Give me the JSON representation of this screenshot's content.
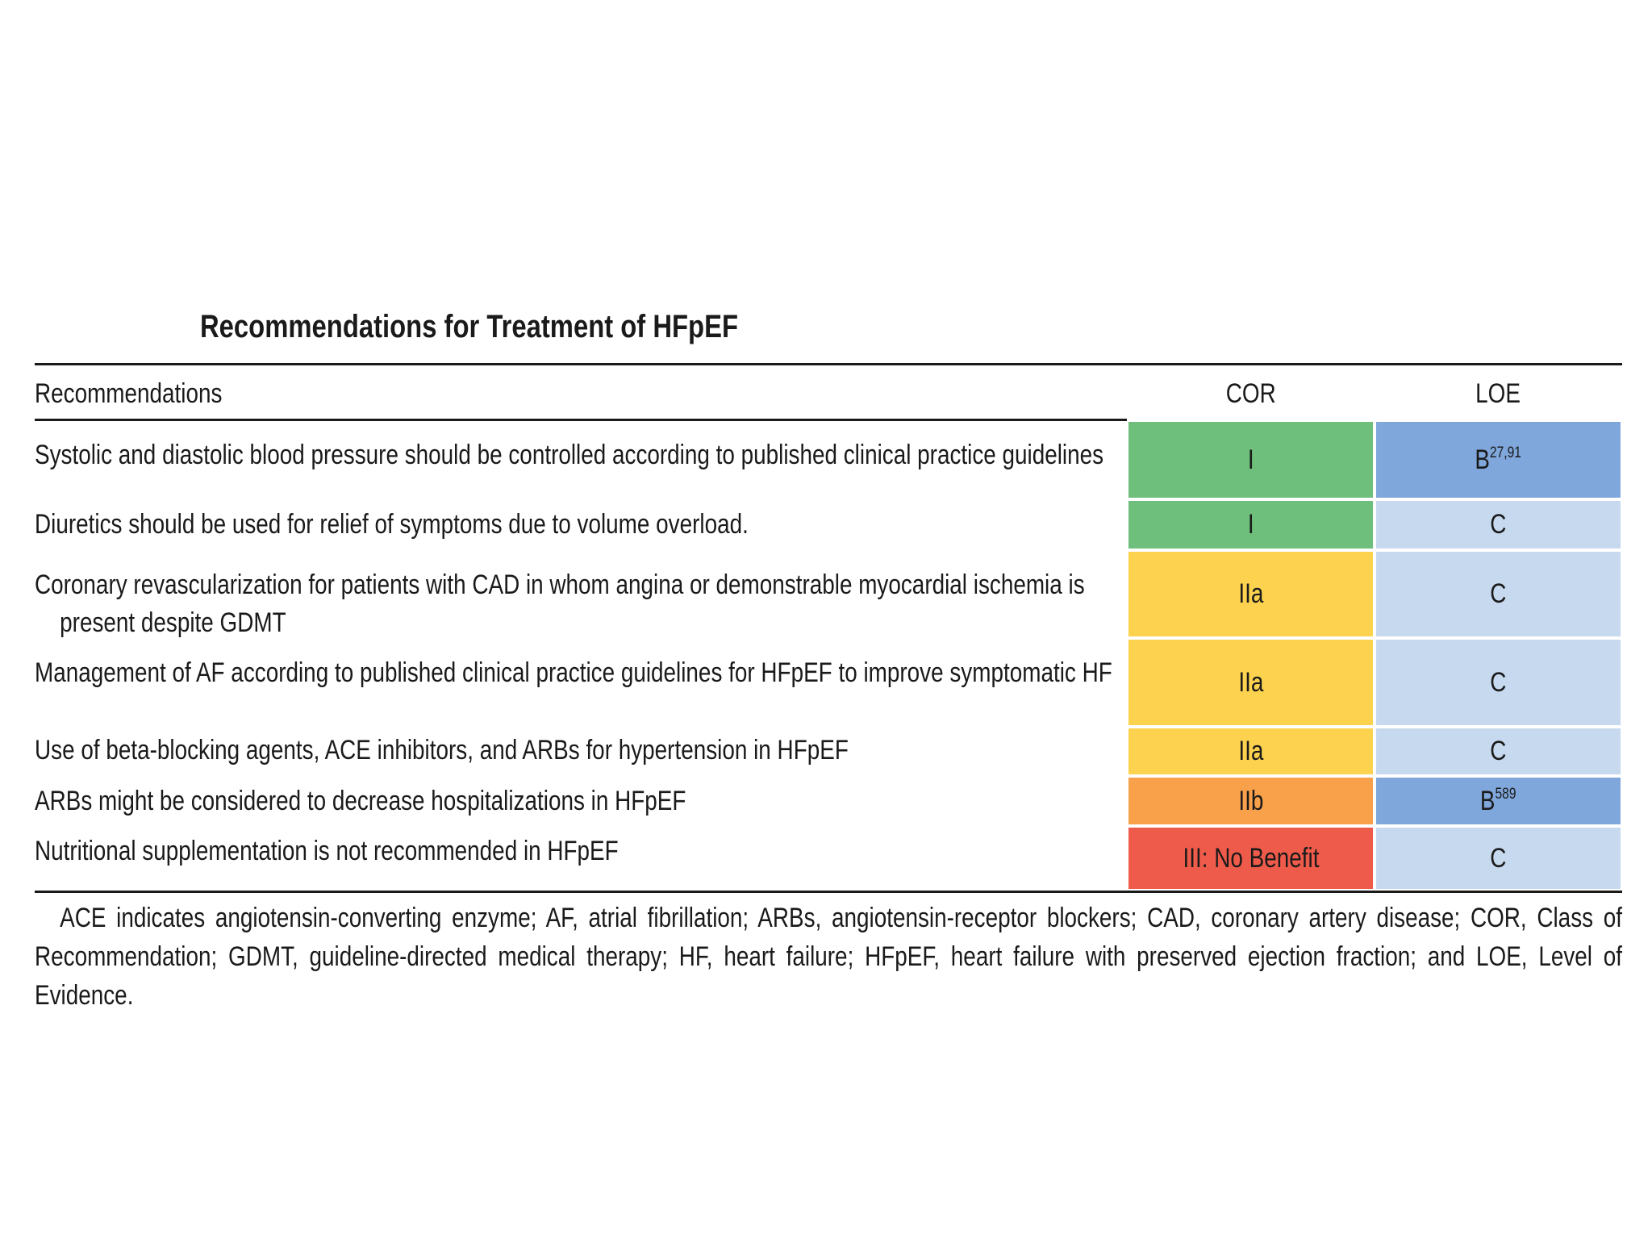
{
  "title": "Recommendations for Treatment of HFpEF",
  "table": {
    "header": [
      "Recommendations",
      "COR",
      "LOE"
    ],
    "rows": [
      {
        "recommendation": "Systolic and diastolic blood pressure should be controlled according to published clinical practice guidelines",
        "cor": "I",
        "loe": "B",
        "loe_refs": "27,91",
        "cor_color": "#6dbf7b",
        "loe_color": "#80a7dc"
      },
      {
        "recommendation": "Diuretics should be used for relief of symptoms due to volume overload.",
        "cor": "I",
        "loe": "C",
        "cor_color": "#6dbf7b",
        "loe_color": "#c7d9ef"
      },
      {
        "recommendation": "Coronary revascularization for patients with CAD in whom angina or demonstrable myocardial ischemia is present despite GDMT",
        "cor": "IIa",
        "loe": "C",
        "cor_color": "#fcd24e",
        "loe_color": "#c7d9ef"
      },
      {
        "recommendation": "Management of AF according to published clinical practice guidelines for HFpEF to improve symptomatic HF",
        "cor": "IIa",
        "loe": "C",
        "cor_color": "#fcd24e",
        "loe_color": "#c7d9ef"
      },
      {
        "recommendation": "Use of beta-blocking agents, ACE inhibitors, and ARBs for hypertension in HFpEF",
        "cor": "IIa",
        "loe": "C",
        "cor_color": "#fcd24e",
        "loe_color": "#c7d9ef"
      },
      {
        "recommendation": "ARBs might be considered to decrease hospitalizations in HFpEF",
        "cor": "IIb",
        "loe": "B",
        "loe_refs": "589",
        "cor_color": "#f9a04a",
        "loe_color": "#80a7dc"
      },
      {
        "recommendation": "Nutritional supplementation is not recommended in HFpEF",
        "cor": "III: No Benefit",
        "loe": "C",
        "cor_color": "#ef5b4b",
        "loe_color": "#c7d9ef"
      }
    ]
  },
  "footnote": "ACE indicates angiotensin-converting enzyme; AF, atrial fibrillation; ARBs, angiotensin-receptor blockers; CAD, coronary artery disease; COR, Class of Recommendation; GDMT, guideline-directed medical therapy; HF, heart failure; HFpEF, heart failure with preserved ejection fraction; and LOE, Level of Evidence."
}
